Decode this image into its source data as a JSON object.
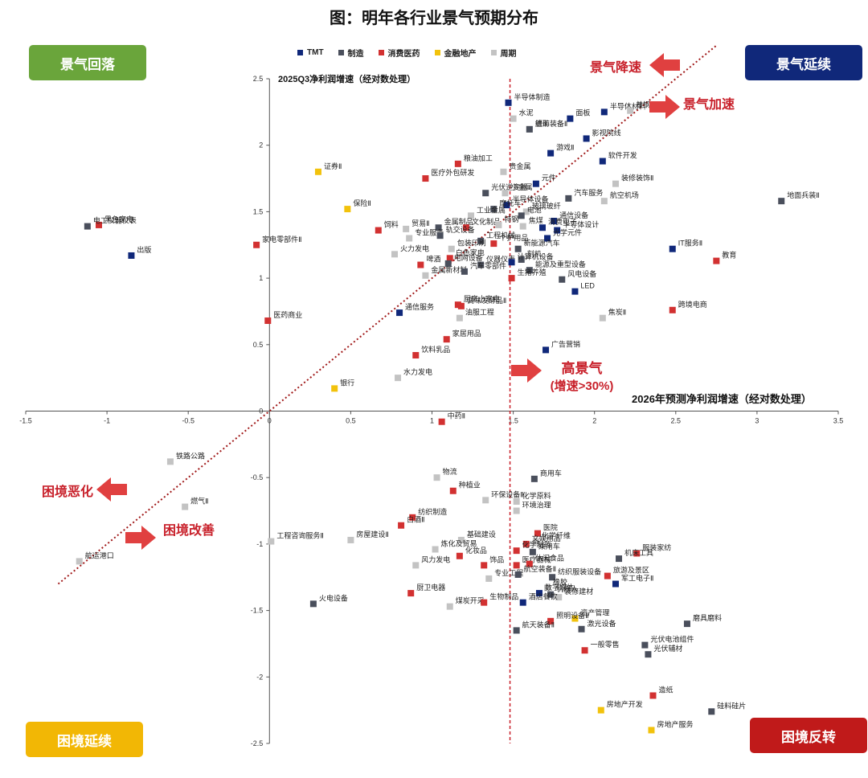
{
  "title": "图：明年各行业景气预期分布",
  "legend": [
    {
      "key": "TMT",
      "label": "TMT",
      "color": "#10287a"
    },
    {
      "key": "zz",
      "label": "制造",
      "color": "#4a4f5c"
    },
    {
      "key": "xf",
      "label": "消费医药",
      "color": "#d23131"
    },
    {
      "key": "jr",
      "label": "金融地产",
      "color": "#f2c20c"
    },
    {
      "key": "zq",
      "label": "周期",
      "color": "#c3c3c3"
    }
  ],
  "quadrants": {
    "top_left": {
      "label": "景气回落",
      "color": "#6aa53b"
    },
    "top_right": {
      "label": "景气延续",
      "color": "#10287a"
    },
    "bottom_left": {
      "label": "困境延续",
      "color": "#f2b705"
    },
    "bottom_right": {
      "label": "困境反转",
      "color": "#c01a1a"
    }
  },
  "annotations": {
    "jq_jiangsu": "景气降速",
    "jq_jiasu": "景气加速",
    "kj_ehua": "困境恶化",
    "kj_gaishan": "困境改善",
    "gao_jingqi": "高景气",
    "gao_jingqi_sub": "(增速>30%)"
  },
  "chart_data": {
    "type": "scatter",
    "title": "图：明年各行业景气预期分布",
    "xlabel": "2026年预测净利润增速（经对数处理）",
    "ylabel": "2025Q3净利润增速（经对数处理）",
    "xlim": [
      -1.5,
      3.5
    ],
    "ylim": [
      -2.5,
      2.5
    ],
    "xticks": [
      "-1.5",
      "-1",
      "-0.5",
      "0",
      "0.5",
      "1",
      "1.5",
      "2",
      "2.5",
      "3",
      "3.5"
    ],
    "yticks": [
      "-2.5",
      "-2",
      "-1.5",
      "-1",
      "-0.5",
      "0",
      "0.5",
      "1",
      "1.5",
      "2",
      "2.5"
    ],
    "grid": false,
    "legend_position": "top",
    "threshold_x": 1.48,
    "diagonal": "y = x",
    "points": [
      {
        "name": "半导体制造",
        "x": 1.47,
        "y": 2.32,
        "cat": "TMT"
      },
      {
        "name": "面板",
        "x": 1.85,
        "y": 2.2,
        "cat": "TMT"
      },
      {
        "name": "半导体材料",
        "x": 2.06,
        "y": 2.25,
        "cat": "TMT"
      },
      {
        "name": "普钢",
        "x": 2.22,
        "y": 2.26,
        "cat": "周期"
      },
      {
        "name": "水泥",
        "x": 1.5,
        "y": 2.2,
        "cat": "周期"
      },
      {
        "name": "锂矿",
        "x": 1.6,
        "y": 2.12,
        "cat": "周期"
      },
      {
        "name": "航海装备Ⅱ",
        "x": 1.6,
        "y": 2.12,
        "cat": "制造"
      },
      {
        "name": "影视院线",
        "x": 1.95,
        "y": 2.05,
        "cat": "TMT"
      },
      {
        "name": "游戏Ⅱ",
        "x": 1.73,
        "y": 1.94,
        "cat": "TMT"
      },
      {
        "name": "软件开发",
        "x": 2.05,
        "y": 1.88,
        "cat": "TMT"
      },
      {
        "name": "粮油加工",
        "x": 1.16,
        "y": 1.86,
        "cat": "消费医药"
      },
      {
        "name": "贵金属",
        "x": 1.44,
        "y": 1.8,
        "cat": "周期"
      },
      {
        "name": "证券Ⅱ",
        "x": 0.3,
        "y": 1.8,
        "cat": "金融地产"
      },
      {
        "name": "医疗外包研发",
        "x": 0.96,
        "y": 1.75,
        "cat": "消费医药"
      },
      {
        "name": "元件",
        "x": 1.64,
        "y": 1.71,
        "cat": "TMT"
      },
      {
        "name": "装修装饰Ⅱ",
        "x": 2.13,
        "y": 1.71,
        "cat": "周期"
      },
      {
        "name": "光伏逆变器",
        "x": 1.33,
        "y": 1.64,
        "cat": "制造"
      },
      {
        "name": "小金属",
        "x": 1.45,
        "y": 1.64,
        "cat": "周期"
      },
      {
        "name": "汽车服务",
        "x": 1.84,
        "y": 1.6,
        "cat": "制造"
      },
      {
        "name": "地面兵装Ⅱ",
        "x": 3.15,
        "y": 1.58,
        "cat": "制造"
      },
      {
        "name": "航空机场",
        "x": 2.06,
        "y": 1.58,
        "cat": "周期"
      },
      {
        "name": "半导体设备",
        "x": 1.46,
        "y": 1.55,
        "cat": "TMT"
      },
      {
        "name": "保险Ⅱ",
        "x": 0.48,
        "y": 1.52,
        "cat": "金融地产"
      },
      {
        "name": "摩托车",
        "x": 1.38,
        "y": 1.52,
        "cat": "制造"
      },
      {
        "name": "玻璃玻纤",
        "x": 1.58,
        "y": 1.5,
        "cat": "周期"
      },
      {
        "name": "工业金属",
        "x": 1.24,
        "y": 1.47,
        "cat": "周期"
      },
      {
        "name": "电池",
        "x": 1.55,
        "y": 1.47,
        "cat": "制造"
      },
      {
        "name": "通信设备",
        "x": 1.75,
        "y": 1.43,
        "cat": "TMT"
      },
      {
        "name": "黑色家电",
        "x": -1.05,
        "y": 1.4,
        "cat": "消费医药"
      },
      {
        "name": "电工仪器仪表",
        "x": -1.12,
        "y": 1.39,
        "cat": "制造"
      },
      {
        "name": "贸易Ⅱ",
        "x": 0.84,
        "y": 1.37,
        "cat": "周期"
      },
      {
        "name": "金属制品",
        "x": 1.04,
        "y": 1.38,
        "cat": "制造"
      },
      {
        "name": "文化制品",
        "x": 1.21,
        "y": 1.38,
        "cat": "消费医药"
      },
      {
        "name": "特钢",
        "x": 1.41,
        "y": 1.4,
        "cat": "周期"
      },
      {
        "name": "焦煤",
        "x": 1.56,
        "y": 1.39,
        "cat": "周期"
      },
      {
        "name": "消费电子",
        "x": 1.68,
        "y": 1.38,
        "cat": "TMT"
      },
      {
        "name": "半导体设计",
        "x": 1.77,
        "y": 1.36,
        "cat": "TMT"
      },
      {
        "name": "饲料",
        "x": 0.67,
        "y": 1.36,
        "cat": "消费医药"
      },
      {
        "name": "家电零部件Ⅱ",
        "x": -0.08,
        "y": 1.25,
        "cat": "消费医药"
      },
      {
        "name": "专业服务",
        "x": 0.86,
        "y": 1.3,
        "cat": "周期"
      },
      {
        "name": "轨交设备",
        "x": 1.05,
        "y": 1.32,
        "cat": "制造"
      },
      {
        "name": "工程机械",
        "x": 1.3,
        "y": 1.28,
        "cat": "制造"
      },
      {
        "name": "个护用品",
        "x": 1.38,
        "y": 1.26,
        "cat": "消费医药"
      },
      {
        "name": "光学元件",
        "x": 1.71,
        "y": 1.3,
        "cat": "TMT"
      },
      {
        "name": "IT服务Ⅱ",
        "x": 2.48,
        "y": 1.22,
        "cat": "TMT"
      },
      {
        "name": "出版",
        "x": -0.85,
        "y": 1.17,
        "cat": "TMT"
      },
      {
        "name": "包装印刷",
        "x": 1.12,
        "y": 1.22,
        "cat": "周期"
      },
      {
        "name": "新能源汽车",
        "x": 1.53,
        "y": 1.22,
        "cat": "制造"
      },
      {
        "name": "白色家电",
        "x": 1.11,
        "y": 1.15,
        "cat": "消费医药"
      },
      {
        "name": "火力发电",
        "x": 0.77,
        "y": 1.18,
        "cat": "周期"
      },
      {
        "name": "教育",
        "x": 2.75,
        "y": 1.13,
        "cat": "消费医药"
      },
      {
        "name": "刻机",
        "x": 1.55,
        "y": 1.14,
        "cat": "制造"
      },
      {
        "name": "啤酒",
        "x": 0.93,
        "y": 1.1,
        "cat": "消费医药"
      },
      {
        "name": "电网设备",
        "x": 1.1,
        "y": 1.11,
        "cat": "制造"
      },
      {
        "name": "仪器仪表",
        "x": 1.3,
        "y": 1.1,
        "cat": "制造"
      },
      {
        "name": "计算机设备",
        "x": 1.49,
        "y": 1.12,
        "cat": "TMT"
      },
      {
        "name": "能源及重型设备",
        "x": 1.6,
        "y": 1.06,
        "cat": "制造"
      },
      {
        "name": "金属新材料",
        "x": 0.96,
        "y": 1.02,
        "cat": "周期"
      },
      {
        "name": "汽车零部件",
        "x": 1.2,
        "y": 1.05,
        "cat": "制造"
      },
      {
        "name": "风电设备",
        "x": 1.8,
        "y": 0.99,
        "cat": "制造"
      },
      {
        "name": "生猪养殖",
        "x": 1.49,
        "y": 1.0,
        "cat": "消费医药"
      },
      {
        "name": "LED",
        "x": 1.88,
        "y": 0.9,
        "cat": "TMT"
      },
      {
        "name": "厨房小家电",
        "x": 1.16,
        "y": 0.8,
        "cat": "消费医药"
      },
      {
        "name": "调味发酵品Ⅱ",
        "x": 1.18,
        "y": 0.79,
        "cat": "消费医药"
      },
      {
        "name": "跨境电商",
        "x": 2.48,
        "y": 0.76,
        "cat": "消费医药"
      },
      {
        "name": "通信服务",
        "x": 0.8,
        "y": 0.74,
        "cat": "TMT"
      },
      {
        "name": "油服工程",
        "x": 1.17,
        "y": 0.7,
        "cat": "周期"
      },
      {
        "name": "焦炭Ⅱ",
        "x": 2.05,
        "y": 0.7,
        "cat": "周期"
      },
      {
        "name": "医药商业",
        "x": -0.01,
        "y": 0.68,
        "cat": "消费医药"
      },
      {
        "name": "家居用品",
        "x": 1.09,
        "y": 0.54,
        "cat": "消费医药"
      },
      {
        "name": "广告营销",
        "x": 1.7,
        "y": 0.46,
        "cat": "TMT"
      },
      {
        "name": "饮料乳品",
        "x": 0.9,
        "y": 0.42,
        "cat": "消费医药"
      },
      {
        "name": "水力发电",
        "x": 0.79,
        "y": 0.25,
        "cat": "周期"
      },
      {
        "name": "银行",
        "x": 0.4,
        "y": 0.17,
        "cat": "金融地产"
      },
      {
        "name": "中药Ⅱ",
        "x": 1.06,
        "y": -0.08,
        "cat": "消费医药"
      },
      {
        "name": "铁路公路",
        "x": -0.61,
        "y": -0.38,
        "cat": "周期"
      },
      {
        "name": "物流",
        "x": 1.03,
        "y": -0.5,
        "cat": "周期"
      },
      {
        "name": "商用车",
        "x": 1.63,
        "y": -0.51,
        "cat": "制造"
      },
      {
        "name": "种植业",
        "x": 1.13,
        "y": -0.6,
        "cat": "消费医药"
      },
      {
        "name": "环保设备Ⅱ",
        "x": 1.33,
        "y": -0.67,
        "cat": "周期"
      },
      {
        "name": "化学原料",
        "x": 1.52,
        "y": -0.68,
        "cat": "周期"
      },
      {
        "name": "燃气Ⅱ",
        "x": -0.52,
        "y": -0.72,
        "cat": "周期"
      },
      {
        "name": "环境治理",
        "x": 1.52,
        "y": -0.75,
        "cat": "周期"
      },
      {
        "name": "纺织制造",
        "x": 0.88,
        "y": -0.8,
        "cat": "消费医药"
      },
      {
        "name": "白酒Ⅱ",
        "x": 0.81,
        "y": -0.86,
        "cat": "消费医药"
      },
      {
        "name": "医院",
        "x": 1.65,
        "y": -0.92,
        "cat": "消费医药"
      },
      {
        "name": "工程咨询服务Ⅱ",
        "x": 0.01,
        "y": -0.98,
        "cat": "周期"
      },
      {
        "name": "房屋建设Ⅱ",
        "x": 0.5,
        "y": -0.97,
        "cat": "周期"
      },
      {
        "name": "基础建设",
        "x": 1.18,
        "y": -0.97,
        "cat": "周期"
      },
      {
        "name": "化学纤维",
        "x": 1.64,
        "y": -0.98,
        "cat": "周期"
      },
      {
        "name": "文娱用品",
        "x": 1.58,
        "y": -1.0,
        "cat": "消费医药"
      },
      {
        "name": "炼化及贸易",
        "x": 1.02,
        "y": -1.04,
        "cat": "周期"
      },
      {
        "name": "化学制药",
        "x": 1.52,
        "y": -1.05,
        "cat": "消费医药"
      },
      {
        "name": "乘用车",
        "x": 1.62,
        "y": -1.06,
        "cat": "制造"
      },
      {
        "name": "服装家纺",
        "x": 2.26,
        "y": -1.07,
        "cat": "消费医药"
      },
      {
        "name": "化妆品",
        "x": 1.17,
        "y": -1.09,
        "cat": "消费医药"
      },
      {
        "name": "机床工具",
        "x": 2.15,
        "y": -1.11,
        "cat": "制造"
      },
      {
        "name": "风力发电",
        "x": 0.9,
        "y": -1.16,
        "cat": "周期"
      },
      {
        "name": "饰品",
        "x": 1.32,
        "y": -1.16,
        "cat": "消费医药"
      },
      {
        "name": "医疗器械",
        "x": 1.52,
        "y": -1.16,
        "cat": "消费医药"
      },
      {
        "name": "休闲食品",
        "x": 1.6,
        "y": -1.15,
        "cat": "消费医药"
      },
      {
        "name": "纺织服装设备",
        "x": 1.74,
        "y": -1.25,
        "cat": "制造"
      },
      {
        "name": "旅游及景区",
        "x": 2.08,
        "y": -1.24,
        "cat": "消费医药"
      },
      {
        "name": "军工电子Ⅱ",
        "x": 2.13,
        "y": -1.3,
        "cat": "TMT"
      },
      {
        "name": "专业工程",
        "x": 1.35,
        "y": -1.26,
        "cat": "周期"
      },
      {
        "name": "航空装备Ⅱ",
        "x": 1.53,
        "y": -1.23,
        "cat": "制造"
      },
      {
        "name": "橡胶",
        "x": 1.71,
        "y": -1.33,
        "cat": "周期"
      },
      {
        "name": "数字媒体",
        "x": 1.66,
        "y": -1.37,
        "cat": "TMT"
      },
      {
        "name": "机器人",
        "x": 1.73,
        "y": -1.38,
        "cat": "制造"
      },
      {
        "name": "装修建材",
        "x": 1.78,
        "y": -1.4,
        "cat": "周期"
      },
      {
        "name": "厨卫电器",
        "x": 0.87,
        "y": -1.37,
        "cat": "消费医药"
      },
      {
        "name": "煤炭开采",
        "x": 1.11,
        "y": -1.47,
        "cat": "周期"
      },
      {
        "name": "火电设备",
        "x": 0.27,
        "y": -1.45,
        "cat": "制造"
      },
      {
        "name": "生物制品",
        "x": 1.32,
        "y": -1.44,
        "cat": "消费医药"
      },
      {
        "name": "酒店餐饮",
        "x": 1.56,
        "y": -1.44,
        "cat": "TMT"
      },
      {
        "name": "航运港口",
        "x": -1.17,
        "y": -1.13,
        "cat": "周期"
      },
      {
        "name": "资产管理",
        "x": 1.88,
        "y": -1.56,
        "cat": "金融地产"
      },
      {
        "name": "照明设备Ⅱ",
        "x": 1.73,
        "y": -1.58,
        "cat": "消费医药"
      },
      {
        "name": "磨具磨料",
        "x": 2.57,
        "y": -1.6,
        "cat": "制造"
      },
      {
        "name": "航天装备Ⅱ",
        "x": 1.52,
        "y": -1.65,
        "cat": "制造"
      },
      {
        "name": "激光设备",
        "x": 1.92,
        "y": -1.64,
        "cat": "制造"
      },
      {
        "name": "光伏电池组件",
        "x": 2.31,
        "y": -1.76,
        "cat": "制造"
      },
      {
        "name": "一般零售",
        "x": 1.94,
        "y": -1.8,
        "cat": "消费医药"
      },
      {
        "name": "光伏辅材",
        "x": 2.33,
        "y": -1.83,
        "cat": "制造"
      },
      {
        "name": "造纸",
        "x": 2.36,
        "y": -2.14,
        "cat": "消费医药"
      },
      {
        "name": "硅料硅片",
        "x": 2.72,
        "y": -2.26,
        "cat": "制造"
      },
      {
        "name": "房地产开发",
        "x": 2.04,
        "y": -2.25,
        "cat": "金融地产"
      },
      {
        "name": "房地产服务",
        "x": 2.35,
        "y": -2.4,
        "cat": "金融地产"
      }
    ]
  }
}
